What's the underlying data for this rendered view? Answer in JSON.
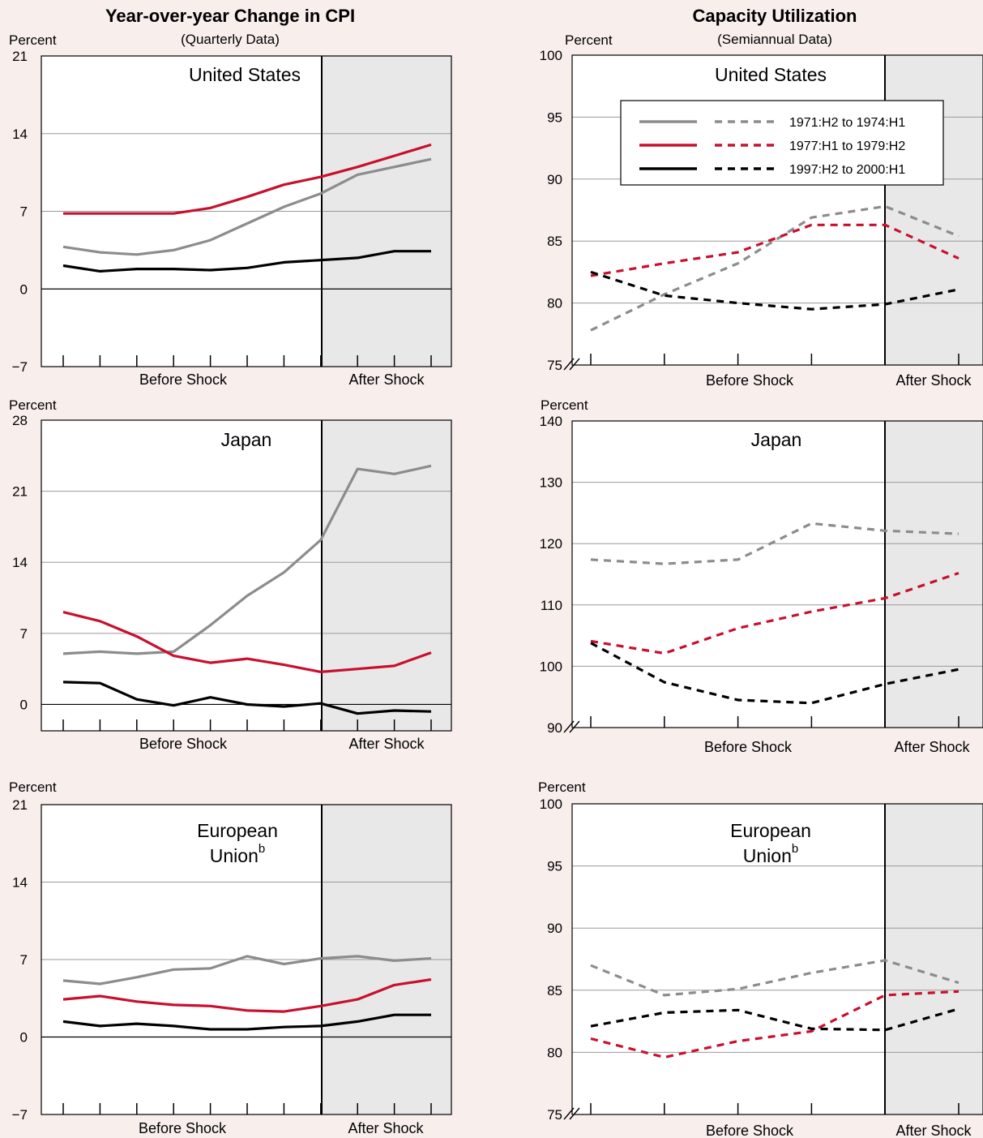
{
  "headers": {
    "cpi": {
      "title": "Year-over-year Change in CPI",
      "subtitle": "(Quarterly Data)"
    },
    "capacity": {
      "title": "Capacity Utilization",
      "subtitle": "(Semiannual Data)"
    }
  },
  "colors": {
    "series_1971": "#8c8c8c",
    "series_1977": "#c8102e",
    "series_1997": "#000000",
    "after_shade": "#e8e8e8",
    "background": "#f8eeec",
    "gridline": "#9a9a9a"
  },
  "legend": {
    "entries": [
      {
        "label": "1971:H2 to 1974:H1",
        "color_key": "series_1971"
      },
      {
        "label": "1977:H1 to 1979:H2",
        "color_key": "series_1977"
      },
      {
        "label": "1997:H2 to 2000:H1",
        "color_key": "series_1997"
      }
    ],
    "note": "solid lines = CPI panels, dashed lines = capacity panels"
  },
  "chart_data": [
    {
      "type": "line",
      "panel": "cpi-us",
      "title": "United States",
      "ylabel": "Percent",
      "ylim": [
        -7,
        21
      ],
      "yticks": [
        "21",
        "14",
        "7",
        "0",
        "−7"
      ],
      "categories": [
        "Before Shock",
        "After Shock"
      ],
      "x": [
        1,
        2,
        3,
        4,
        5,
        6,
        7,
        8,
        9,
        10,
        11
      ],
      "shock_after_x": 8,
      "grid": true,
      "series": [
        {
          "name": "1971:H2 to 1974:H1",
          "style": "solid",
          "color_key": "series_1971",
          "values": [
            3.8,
            3.3,
            3.1,
            3.5,
            4.4,
            5.9,
            7.4,
            8.6,
            10.3,
            11.0,
            11.7
          ]
        },
        {
          "name": "1977:H1 to 1979:H2",
          "style": "solid",
          "color_key": "series_1977",
          "values": [
            6.8,
            6.8,
            6.8,
            6.8,
            7.3,
            8.3,
            9.4,
            10.1,
            11.0,
            12.0,
            13.0
          ]
        },
        {
          "name": "1997:H2 to 2000:H1",
          "style": "solid",
          "color_key": "series_1997",
          "values": [
            2.1,
            1.6,
            1.8,
            1.8,
            1.7,
            1.9,
            2.4,
            2.6,
            2.8,
            3.4,
            3.4
          ]
        }
      ]
    },
    {
      "type": "line",
      "panel": "cpi-japan",
      "title": "Japan",
      "ylabel": "Percent",
      "ylim": [
        -2.6,
        28
      ],
      "yticks": [
        "28",
        "21",
        "14",
        "7",
        "0"
      ],
      "categories": [
        "Before Shock",
        "After Shock"
      ],
      "x": [
        1,
        2,
        3,
        4,
        5,
        6,
        7,
        8,
        9,
        10,
        11
      ],
      "shock_after_x": 8,
      "grid": true,
      "series": [
        {
          "name": "1971:H2 to 1974:H1",
          "style": "solid",
          "color_key": "series_1971",
          "values": [
            5.0,
            5.2,
            5.0,
            5.2,
            7.8,
            10.7,
            13.0,
            16.2,
            23.2,
            22.7,
            23.5
          ]
        },
        {
          "name": "1977:H1 to 1979:H2",
          "style": "solid",
          "color_key": "series_1977",
          "values": [
            9.1,
            8.2,
            6.7,
            4.8,
            4.1,
            4.5,
            3.9,
            3.2,
            3.5,
            3.8,
            5.1
          ]
        },
        {
          "name": "1997:H2 to 2000:H1",
          "style": "solid",
          "color_key": "series_1997",
          "values": [
            2.2,
            2.1,
            0.5,
            -0.1,
            0.7,
            0.0,
            -0.2,
            0.1,
            -0.9,
            -0.6,
            -0.7
          ]
        }
      ]
    },
    {
      "type": "line",
      "panel": "cpi-eu",
      "title": "European Union",
      "title_sup": "b",
      "ylabel": "Percent",
      "ylim": [
        -7,
        21
      ],
      "yticks": [
        "21",
        "14",
        "7",
        "0",
        "−7"
      ],
      "categories": [
        "Before Shock",
        "After Shock"
      ],
      "x": [
        1,
        2,
        3,
        4,
        5,
        6,
        7,
        8,
        9,
        10,
        11
      ],
      "shock_after_x": 8,
      "grid": true,
      "series": [
        {
          "name": "1971:H2 to 1974:H1",
          "style": "solid",
          "color_key": "series_1971",
          "values": [
            5.1,
            4.8,
            5.4,
            6.1,
            6.2,
            7.3,
            6.6,
            7.1,
            7.3,
            6.9,
            7.1
          ]
        },
        {
          "name": "1977:H1 to 1979:H2",
          "style": "solid",
          "color_key": "series_1977",
          "values": [
            3.4,
            3.7,
            3.2,
            2.9,
            2.8,
            2.4,
            2.3,
            2.8,
            3.4,
            4.7,
            5.2
          ]
        },
        {
          "name": "1997:H2 to 2000:H1",
          "style": "solid",
          "color_key": "series_1997",
          "values": [
            1.4,
            1.0,
            1.2,
            1.0,
            0.7,
            0.7,
            0.9,
            1.0,
            1.4,
            2.0,
            2.0
          ]
        }
      ]
    },
    {
      "type": "line",
      "panel": "cap-us",
      "title": "United States",
      "ylabel": "Percent",
      "ylim": [
        75,
        100
      ],
      "yticks": [
        "100",
        "95",
        "90",
        "85",
        "80",
        "75"
      ],
      "axis_break": true,
      "categories": [
        "Before Shock",
        "After Shock"
      ],
      "x": [
        1,
        2,
        3,
        4,
        5,
        6
      ],
      "shock_after_x": 5,
      "grid": true,
      "series": [
        {
          "name": "1971:H2 to 1974:H1",
          "style": "dashed",
          "color_key": "series_1971",
          "values": [
            77.8,
            80.7,
            83.2,
            86.9,
            87.8,
            85.4
          ]
        },
        {
          "name": "1977:H1 to 1979:H2",
          "style": "dashed",
          "color_key": "series_1977",
          "values": [
            82.2,
            83.2,
            84.1,
            86.3,
            86.3,
            83.6
          ]
        },
        {
          "name": "1997:H2 to 2000:H1",
          "style": "dashed",
          "color_key": "series_1997",
          "values": [
            82.5,
            80.6,
            80.0,
            79.5,
            79.9,
            81.1
          ]
        }
      ]
    },
    {
      "type": "line",
      "panel": "cap-japan",
      "title": "Japan",
      "ylabel": "Percent",
      "ylim": [
        90,
        140
      ],
      "yticks": [
        "140",
        "130",
        "120",
        "110",
        "100",
        "90"
      ],
      "axis_break": true,
      "categories": [
        "Before Shock",
        "After Shock"
      ],
      "x": [
        1,
        2,
        3,
        4,
        5,
        6
      ],
      "shock_after_x": 5,
      "grid": true,
      "series": [
        {
          "name": "1971:H2 to 1974:H1",
          "style": "dashed",
          "color_key": "series_1971",
          "values": [
            117.4,
            116.7,
            117.4,
            123.3,
            122.1,
            121.6
          ]
        },
        {
          "name": "1977:H1 to 1979:H2",
          "style": "dashed",
          "color_key": "series_1977",
          "values": [
            104.1,
            102.1,
            106.2,
            108.9,
            111.1,
            115.2
          ]
        },
        {
          "name": "1997:H2 to 2000:H1",
          "style": "dashed",
          "color_key": "series_1997",
          "values": [
            103.8,
            97.4,
            94.5,
            94.0,
            97.1,
            99.5
          ]
        }
      ]
    },
    {
      "type": "line",
      "panel": "cap-eu",
      "title": "European Union",
      "title_sup": "b",
      "ylabel": "Percent",
      "ylim": [
        75,
        100
      ],
      "yticks": [
        "100",
        "95",
        "90",
        "85",
        "80",
        "75"
      ],
      "axis_break": true,
      "categories": [
        "Before Shock",
        "After Shock"
      ],
      "x": [
        1,
        2,
        3,
        4,
        5,
        6
      ],
      "shock_after_x": 5,
      "grid": true,
      "series": [
        {
          "name": "1971:H2 to 1974:H1",
          "style": "dashed",
          "color_key": "series_1971",
          "values": [
            87.0,
            84.6,
            85.1,
            86.4,
            87.4,
            85.6
          ]
        },
        {
          "name": "1977:H1 to 1979:H2",
          "style": "dashed",
          "color_key": "series_1977",
          "values": [
            81.1,
            79.6,
            80.9,
            81.7,
            84.6,
            84.9
          ]
        },
        {
          "name": "1997:H2 to 2000:H1",
          "style": "dashed",
          "color_key": "series_1997",
          "values": [
            82.1,
            83.2,
            83.4,
            81.9,
            81.8,
            83.5
          ]
        }
      ]
    }
  ]
}
